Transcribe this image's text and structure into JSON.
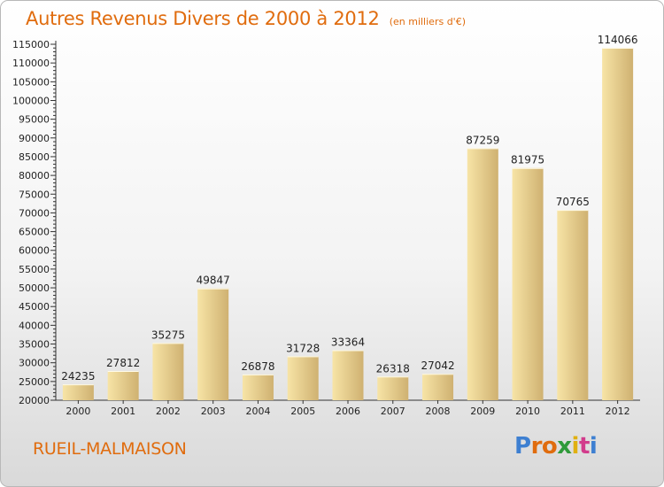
{
  "title": "Autres Revenus Divers de 2000 à 2012",
  "subtitle": "(en milliers d'€)",
  "city": "RUEIL-MALMAISON",
  "brand": {
    "text": "Proxiti",
    "colors": [
      "#3d7fd1",
      "#e06c0e",
      "#e06c0e",
      "#2f9a3a",
      "#e0b010",
      "#d23c8c",
      "#3d7fd1"
    ]
  },
  "colors": {
    "accent": "#e06c0e",
    "bar_light": "#f7e4a6",
    "bar_dark": "#cfb171"
  },
  "chart_data": {
    "type": "bar",
    "categories": [
      "2000",
      "2001",
      "2002",
      "2003",
      "2004",
      "2005",
      "2006",
      "2007",
      "2008",
      "2009",
      "2010",
      "2011",
      "2012"
    ],
    "values": [
      24235,
      27812,
      35275,
      49847,
      26878,
      31728,
      33364,
      26318,
      27042,
      87259,
      81975,
      70765,
      114066
    ],
    "data_labels": [
      "24235",
      "27812",
      "35275",
      "49847",
      "26878",
      "31728",
      "33364",
      "26318",
      "27042",
      "87259",
      "81975",
      "70765",
      "114066"
    ],
    "yticks": [
      "20000",
      "25000",
      "30000",
      "35000",
      "40000",
      "45000",
      "50000",
      "55000",
      "60000",
      "65000",
      "70000",
      "75000",
      "80000",
      "85000",
      "90000",
      "95000",
      "100000",
      "105000",
      "110000",
      "115000"
    ],
    "ylim": [
      20000,
      115000
    ],
    "grid": false,
    "legend": "none"
  }
}
